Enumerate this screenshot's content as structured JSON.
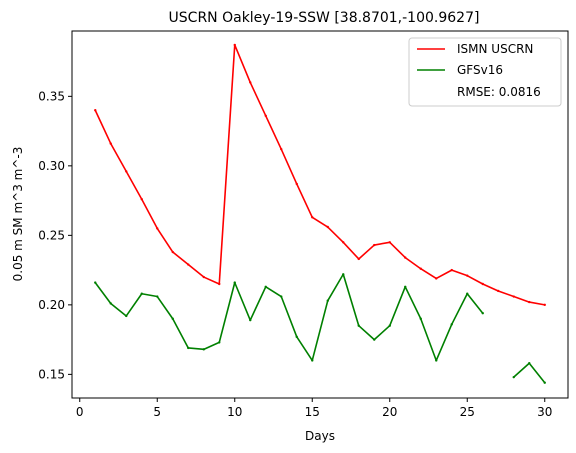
{
  "chart_data": {
    "type": "line",
    "title": "USCRN Oakley-19-SSW [38.8701,-100.9627]",
    "xlabel": "Days",
    "ylabel": "0.05 m SM m^3 m^-3",
    "xlim": [
      -0.5,
      31.5
    ],
    "ylim": [
      0.133,
      0.397
    ],
    "xticks": [
      0,
      5,
      10,
      15,
      20,
      25,
      30
    ],
    "xtick_labels": [
      "0",
      "5",
      "10",
      "15",
      "20",
      "25",
      "30"
    ],
    "yticks": [
      0.15,
      0.2,
      0.25,
      0.3,
      0.35
    ],
    "ytick_labels": [
      "0.15",
      "0.20",
      "0.25",
      "0.30",
      "0.35"
    ],
    "grid": false,
    "legend_position": "upper right",
    "series": [
      {
        "name": "ISMN USCRN",
        "color": "#ff0000",
        "x": [
          1,
          2,
          3,
          4,
          5,
          6,
          7,
          8,
          9,
          10,
          11,
          12,
          13,
          14,
          15,
          16,
          17,
          18,
          19,
          20,
          21,
          22,
          23,
          24,
          25,
          26,
          27,
          28,
          29,
          30
        ],
        "values": [
          0.34,
          0.316,
          0.296,
          0.276,
          0.255,
          0.238,
          0.229,
          0.22,
          0.215,
          0.387,
          0.36,
          0.336,
          0.312,
          0.287,
          0.263,
          0.256,
          0.245,
          0.233,
          0.243,
          0.245,
          0.234,
          0.226,
          0.219,
          0.225,
          0.221,
          0.215,
          0.21,
          0.206,
          0.202,
          0.2
        ]
      },
      {
        "name": "GFSv16",
        "color": "#008000",
        "x": [
          1,
          2,
          3,
          4,
          5,
          6,
          7,
          8,
          9,
          10,
          11,
          12,
          13,
          14,
          15,
          16,
          17,
          18,
          19,
          20,
          21,
          22,
          23,
          24,
          25,
          26,
          27,
          28,
          29,
          30
        ],
        "values": [
          0.216,
          0.201,
          0.192,
          0.208,
          0.206,
          0.19,
          0.169,
          0.168,
          0.173,
          0.216,
          0.189,
          0.213,
          0.206,
          0.177,
          0.16,
          0.203,
          0.222,
          0.185,
          0.175,
          0.185,
          0.213,
          0.19,
          0.16,
          0.186,
          0.208,
          0.194,
          null,
          0.148,
          0.158,
          0.144
        ]
      }
    ],
    "annotations": [
      {
        "text": "RMSE: 0.0816"
      }
    ]
  }
}
